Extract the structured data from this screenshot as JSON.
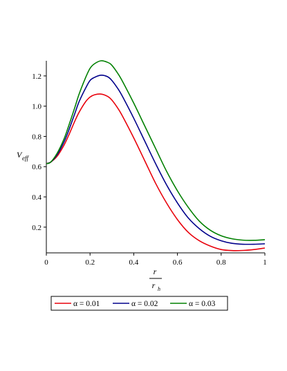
{
  "chart_data": {
    "type": "line",
    "title": "",
    "xlabel": {
      "numerator": "r",
      "denominator": "r",
      "denominator_sub": "h"
    },
    "ylabel": {
      "main": "V",
      "sub": "eff"
    },
    "xlim": [
      0,
      1
    ],
    "ylim": [
      0.03,
      1.3
    ],
    "x_ticks": [
      {
        "value": 0,
        "label": "0"
      },
      {
        "value": 0.2,
        "label": "0.2"
      },
      {
        "value": 0.4,
        "label": "0.4"
      },
      {
        "value": 0.6,
        "label": "0.6"
      },
      {
        "value": 0.8,
        "label": "0.8"
      },
      {
        "value": 1,
        "label": "1"
      }
    ],
    "y_ticks": [
      {
        "value": 0.2,
        "label": "0.2"
      },
      {
        "value": 0.4,
        "label": "0.4"
      },
      {
        "value": 0.6,
        "label": "0.6"
      },
      {
        "value": 0.8,
        "label": "0.8"
      },
      {
        "value": 1.0,
        "label": "1.0"
      },
      {
        "value": 1.2,
        "label": "1.2"
      }
    ],
    "grid": false,
    "legend_position": "bottom",
    "x": [
      0,
      0.02,
      0.05,
      0.08,
      0.1,
      0.13,
      0.15,
      0.18,
      0.2,
      0.22,
      0.25,
      0.28,
      0.3,
      0.33,
      0.35,
      0.4,
      0.45,
      0.5,
      0.55,
      0.6,
      0.65,
      0.7,
      0.75,
      0.8,
      0.85,
      0.9,
      0.95,
      1.0
    ],
    "series": [
      {
        "name": "α = 0.01",
        "color": "#e8000b",
        "values": [
          0.62,
          0.63,
          0.67,
          0.74,
          0.8,
          0.9,
          0.96,
          1.03,
          1.06,
          1.075,
          1.08,
          1.065,
          1.04,
          0.98,
          0.93,
          0.79,
          0.64,
          0.49,
          0.36,
          0.25,
          0.165,
          0.11,
          0.075,
          0.052,
          0.045,
          0.046,
          0.052,
          0.062
        ]
      },
      {
        "name": "α = 0.02",
        "color": "#00008b",
        "values": [
          0.62,
          0.63,
          0.68,
          0.76,
          0.83,
          0.95,
          1.03,
          1.12,
          1.17,
          1.19,
          1.205,
          1.195,
          1.17,
          1.11,
          1.06,
          0.92,
          0.77,
          0.62,
          0.48,
          0.36,
          0.26,
          0.19,
          0.14,
          0.11,
          0.093,
          0.087,
          0.087,
          0.09
        ]
      },
      {
        "name": "α = 0.03",
        "color": "#008000",
        "values": [
          0.62,
          0.63,
          0.69,
          0.78,
          0.86,
          0.99,
          1.08,
          1.19,
          1.25,
          1.28,
          1.3,
          1.29,
          1.27,
          1.21,
          1.16,
          1.02,
          0.87,
          0.72,
          0.57,
          0.44,
          0.33,
          0.24,
          0.18,
          0.143,
          0.123,
          0.114,
          0.113,
          0.117
        ]
      }
    ]
  }
}
